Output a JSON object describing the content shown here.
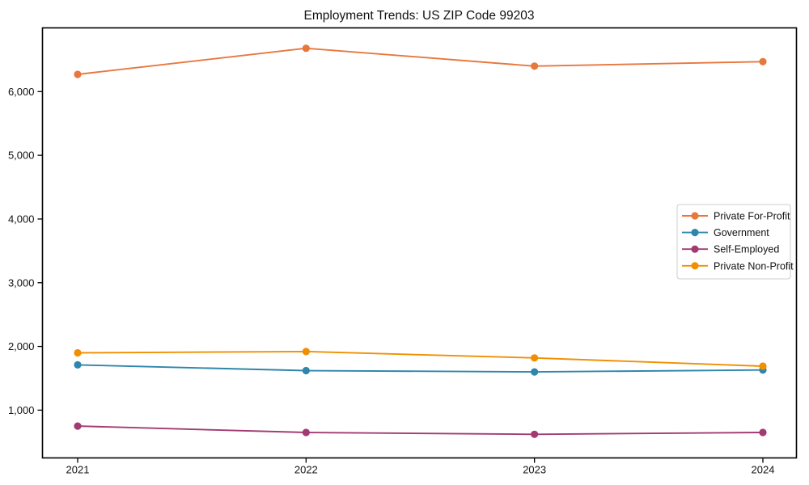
{
  "chart_data": {
    "type": "line",
    "title": "Employment Trends: US ZIP Code 99203",
    "categories": [
      "2021",
      "2022",
      "2023",
      "2024"
    ],
    "series": [
      {
        "name": "Private For-Profit",
        "color": "#E8773C",
        "values": [
          6270,
          6680,
          6400,
          6470
        ]
      },
      {
        "name": "Government",
        "color": "#2E86AB",
        "values": [
          1710,
          1620,
          1600,
          1630
        ]
      },
      {
        "name": "Self-Employed",
        "color": "#A23B72",
        "values": [
          750,
          650,
          620,
          650
        ]
      },
      {
        "name": "Private Non-Profit",
        "color": "#F18F01",
        "values": [
          1900,
          1920,
          1820,
          1690
        ]
      }
    ],
    "xlabel": "",
    "ylabel": "",
    "ylim": [
      250,
      7000
    ],
    "yticks": [
      1000,
      2000,
      3000,
      4000,
      5000,
      6000
    ],
    "ytick_labels": [
      "1,000",
      "2,000",
      "3,000",
      "4,000",
      "5,000",
      "6,000"
    ],
    "grid": "off",
    "legend_position": "right-center",
    "marker": "circle",
    "axis_color": "#000000",
    "background_color": "#ffffff",
    "legend_border_color": "#cccccc"
  }
}
